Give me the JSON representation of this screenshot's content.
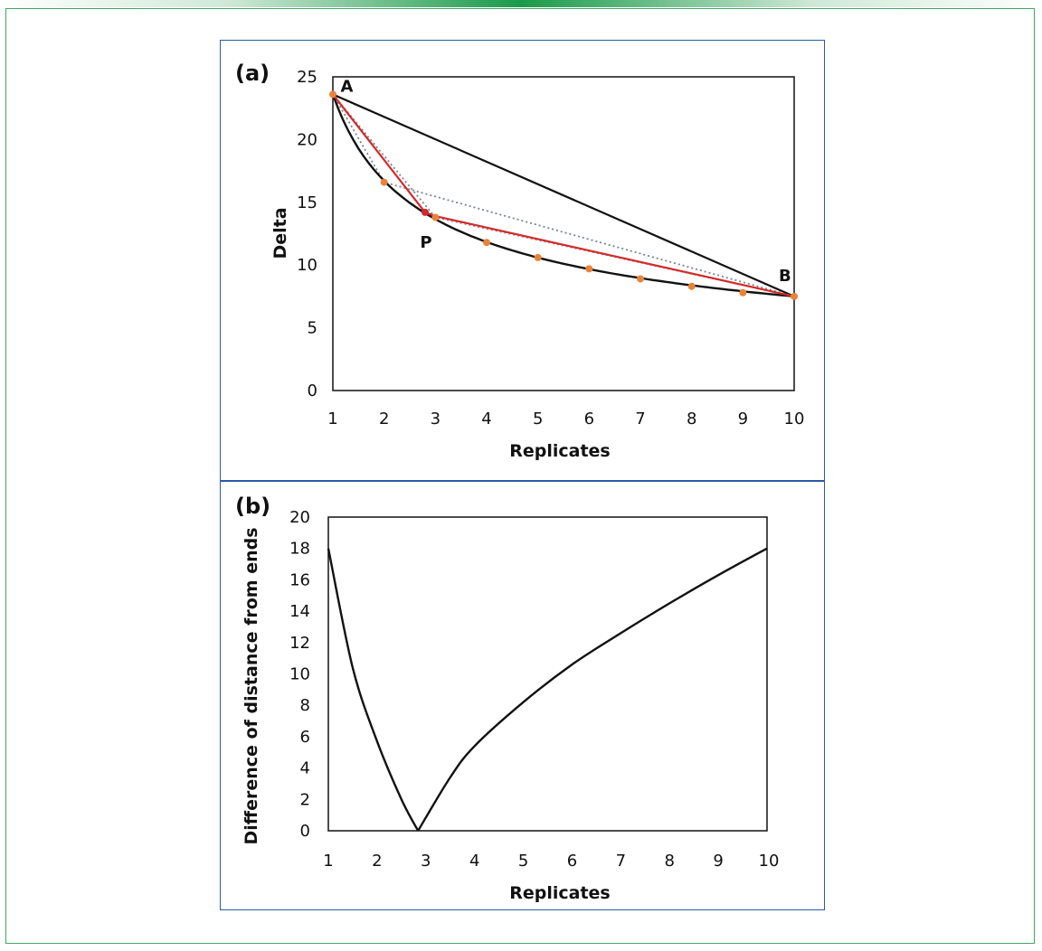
{
  "colors": {
    "accent": "#1a9a4a",
    "panel_border": "#2a5aa8",
    "curve": "#111111",
    "red_line": "#d42a2a",
    "dots": "#e8843a",
    "dotted": "#7a8590"
  },
  "chart_data": [
    {
      "panel": "(a)",
      "type": "line",
      "xlabel": "Replicates",
      "ylabel": "Delta",
      "xlim": [
        1,
        10
      ],
      "ylim": [
        0,
        25
      ],
      "xticks": [
        "1",
        "2",
        "3",
        "4",
        "5",
        "6",
        "7",
        "8",
        "9",
        "10"
      ],
      "yticks": [
        "0",
        "5",
        "10",
        "15",
        "20",
        "25"
      ],
      "grid": false,
      "points": [
        {
          "x": 1,
          "y": 23.6
        },
        {
          "x": 2,
          "y": 16.6
        },
        {
          "x": 3,
          "y": 13.8
        },
        {
          "x": 4,
          "y": 11.8
        },
        {
          "x": 5,
          "y": 10.6
        },
        {
          "x": 6,
          "y": 9.7
        },
        {
          "x": 7,
          "y": 8.9
        },
        {
          "x": 8,
          "y": 8.3
        },
        {
          "x": 9,
          "y": 7.8
        },
        {
          "x": 10,
          "y": 7.5
        }
      ],
      "chord_AB": [
        {
          "x": 1,
          "y": 23.6
        },
        {
          "x": 10,
          "y": 7.5
        }
      ],
      "red_path": [
        {
          "x": 1,
          "y": 23.6
        },
        {
          "x": 2.8,
          "y": 14.2
        },
        {
          "x": 3,
          "y": 13.9
        },
        {
          "x": 10,
          "y": 7.5
        }
      ],
      "dotted_paths": [
        [
          {
            "x": 1,
            "y": 23.6
          },
          {
            "x": 2,
            "y": 16.6
          },
          {
            "x": 10,
            "y": 7.5
          }
        ],
        [
          {
            "x": 1,
            "y": 23.6
          },
          {
            "x": 3,
            "y": 13.8
          },
          {
            "x": 10,
            "y": 7.5
          }
        ]
      ],
      "point_P": {
        "x": 2.8,
        "y": 14.2
      },
      "annotations": [
        {
          "text": "A",
          "x": 1.15,
          "y": 23.8
        },
        {
          "text": "P",
          "x": 2.7,
          "y": 11.4
        },
        {
          "text": "B",
          "x": 9.7,
          "y": 8.7
        }
      ]
    },
    {
      "panel": "(b)",
      "type": "line",
      "xlabel": "Replicates",
      "ylabel": "Difference of distance from ends",
      "xlim": [
        1,
        10
      ],
      "ylim": [
        0,
        20
      ],
      "xticks": [
        "1",
        "2",
        "3",
        "4",
        "5",
        "6",
        "7",
        "8",
        "9",
        "10"
      ],
      "yticks": [
        "0",
        "2",
        "4",
        "6",
        "8",
        "10",
        "12",
        "14",
        "16",
        "18",
        "20"
      ],
      "grid": false,
      "series": [
        {
          "x": [
            1,
            1.5,
            2,
            2.5,
            2.84,
            3.5,
            4,
            5,
            6,
            7,
            8,
            9,
            10
          ],
          "values": [
            18.0,
            10.4,
            5.7,
            2.0,
            0.0,
            3.4,
            5.4,
            8.2,
            10.6,
            12.6,
            14.5,
            16.3,
            18.0
          ]
        }
      ]
    }
  ]
}
